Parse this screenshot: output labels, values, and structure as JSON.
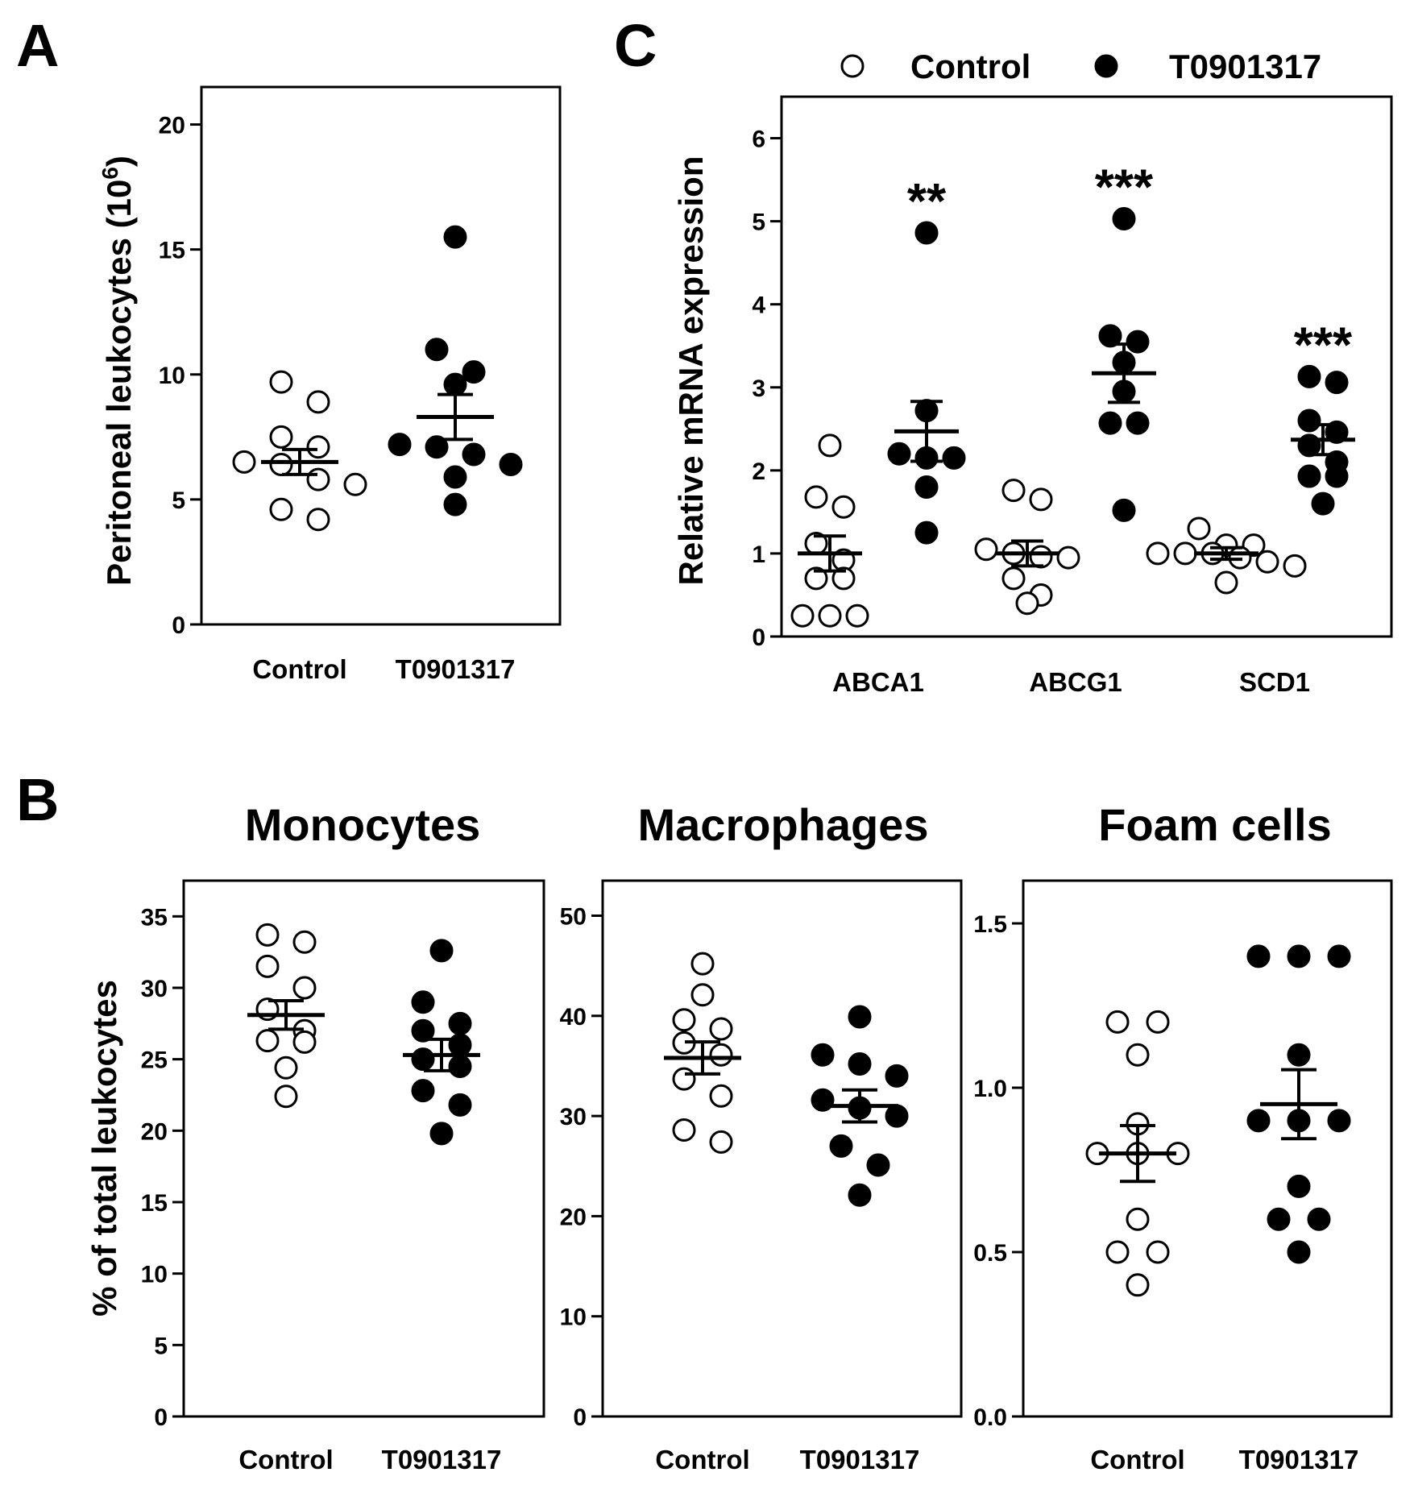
{
  "figure_labels": {
    "A": "A",
    "B": "B",
    "C": "C"
  },
  "legend": {
    "control": {
      "label": "Control",
      "style": "open"
    },
    "treated": {
      "label": "T0901317",
      "style": "filled"
    }
  },
  "colors": {
    "ink": "#000000",
    "background": "#ffffff"
  },
  "chart_data": [
    {
      "id": "A",
      "type": "scatter",
      "title": "",
      "ylabel": "Peritoneal leukocytes (10",
      "ylabel_superscript": "6",
      "ylabel_suffix": ")",
      "ylim": [
        0,
        21.5
      ],
      "yticks": [
        0,
        5,
        10,
        15,
        20
      ],
      "tick_labels": [
        "0",
        "5",
        "10",
        "15",
        "20"
      ],
      "groups": [
        {
          "name": "Control",
          "style": "open",
          "mean": 6.5,
          "sem": 0.5,
          "points": [
            9.7,
            8.9,
            7.5,
            7.1,
            6.5,
            6.4,
            5.8,
            5.6,
            4.6,
            4.2
          ]
        },
        {
          "name": "T0901317",
          "style": "filled",
          "mean": 8.3,
          "sem": 0.9,
          "points": [
            15.5,
            11.0,
            10.1,
            9.6,
            7.2,
            7.1,
            6.8,
            6.4,
            5.9,
            4.8
          ]
        }
      ]
    },
    {
      "id": "B1",
      "type": "scatter",
      "title": "Monocytes",
      "ylabel": "% of total leukocytes",
      "ylim": [
        0,
        37.5
      ],
      "yticks": [
        0,
        5,
        10,
        15,
        20,
        25,
        30,
        35
      ],
      "tick_labels": [
        "0",
        "5",
        "10",
        "15",
        "20",
        "25",
        "30",
        "35"
      ],
      "groups": [
        {
          "name": "Control",
          "style": "open",
          "mean": 28.1,
          "sem": 1.0,
          "points": [
            33.7,
            33.2,
            31.5,
            30.0,
            28.5,
            27.0,
            26.3,
            26.2,
            24.4,
            22.4
          ]
        },
        {
          "name": "T0901317",
          "style": "filled",
          "mean": 25.3,
          "sem": 1.1,
          "points": [
            32.6,
            29.0,
            27.5,
            27.0,
            26.0,
            25.0,
            24.5,
            22.8,
            21.8,
            19.8
          ]
        }
      ]
    },
    {
      "id": "B2",
      "type": "scatter",
      "title": "Macrophages",
      "ylabel": "",
      "ylim": [
        0,
        53.5
      ],
      "yticks": [
        0,
        10,
        20,
        30,
        40,
        50
      ],
      "tick_labels": [
        "0",
        "10",
        "20",
        "30",
        "40",
        "50"
      ],
      "groups": [
        {
          "name": "Control",
          "style": "open",
          "mean": 35.8,
          "sem": 1.6,
          "points": [
            45.2,
            42.1,
            39.6,
            38.7,
            37.3,
            36.1,
            33.7,
            32.0,
            28.6,
            27.4
          ]
        },
        {
          "name": "T0901317",
          "style": "filled",
          "mean": 31.0,
          "sem": 1.6,
          "points": [
            39.9,
            36.1,
            35.2,
            34.0,
            31.6,
            30.8,
            30.0,
            27.0,
            25.1,
            22.1
          ]
        }
      ]
    },
    {
      "id": "B3",
      "type": "scatter",
      "title": "Foam cells",
      "ylabel": "",
      "ylim": [
        0,
        1.63
      ],
      "yticks": [
        0,
        0.5,
        1.0,
        1.5
      ],
      "tick_labels": [
        "0.0",
        "0.5",
        "1.0",
        "1.5"
      ],
      "groups": [
        {
          "name": "Control",
          "style": "open",
          "mean": 0.8,
          "sem": 0.085,
          "points": [
            1.2,
            1.2,
            1.1,
            0.89,
            0.8,
            0.8,
            0.8,
            0.6,
            0.5,
            0.5,
            0.4
          ]
        },
        {
          "name": "T0901317",
          "style": "filled",
          "mean": 0.95,
          "sem": 0.105,
          "points": [
            1.4,
            1.4,
            1.4,
            1.1,
            0.9,
            0.9,
            0.9,
            0.7,
            0.6,
            0.6,
            0.5
          ]
        }
      ]
    },
    {
      "id": "C",
      "type": "scatter",
      "title": "",
      "ylabel": "Relative mRNA expression",
      "ylim": [
        0,
        6.5
      ],
      "yticks": [
        0,
        1,
        2,
        3,
        4,
        5,
        6
      ],
      "tick_labels": [
        "0",
        "1",
        "2",
        "3",
        "4",
        "5",
        "6"
      ],
      "categories": [
        "ABCA1",
        "ABCG1",
        "SCD1"
      ],
      "genes": [
        {
          "name": "ABCA1",
          "control": {
            "mean": 1.0,
            "sem": 0.21,
            "points": [
              2.3,
              1.68,
              1.56,
              1.12,
              0.92,
              0.7,
              0.7,
              0.25,
              0.25,
              0.25
            ]
          },
          "treated": {
            "mean": 2.47,
            "sem": 0.36,
            "points": [
              4.86,
              2.72,
              2.2,
              2.15,
              2.15,
              1.8,
              1.25
            ]
          },
          "significance": "**"
        },
        {
          "name": "ABCG1",
          "control": {
            "mean": 1.0,
            "sem": 0.15,
            "points": [
              1.76,
              1.65,
              1.05,
              1.0,
              0.96,
              0.95,
              0.7,
              0.5,
              0.4
            ]
          },
          "treated": {
            "mean": 3.17,
            "sem": 0.35,
            "points": [
              5.03,
              3.62,
              3.55,
              3.3,
              2.95,
              2.57,
              2.57,
              1.52
            ]
          },
          "significance": "***"
        },
        {
          "name": "SCD1",
          "control": {
            "mean": 1.0,
            "sem": 0.07,
            "points": [
              1.3,
              1.1,
              1.1,
              1.0,
              1.0,
              1.0,
              0.95,
              0.9,
              0.85,
              0.65
            ]
          },
          "treated": {
            "mean": 2.37,
            "sem": 0.18,
            "points": [
              3.13,
              3.06,
              2.6,
              2.46,
              2.3,
              2.1,
              1.93,
              1.93,
              1.6
            ]
          },
          "significance": "***"
        }
      ]
    }
  ]
}
